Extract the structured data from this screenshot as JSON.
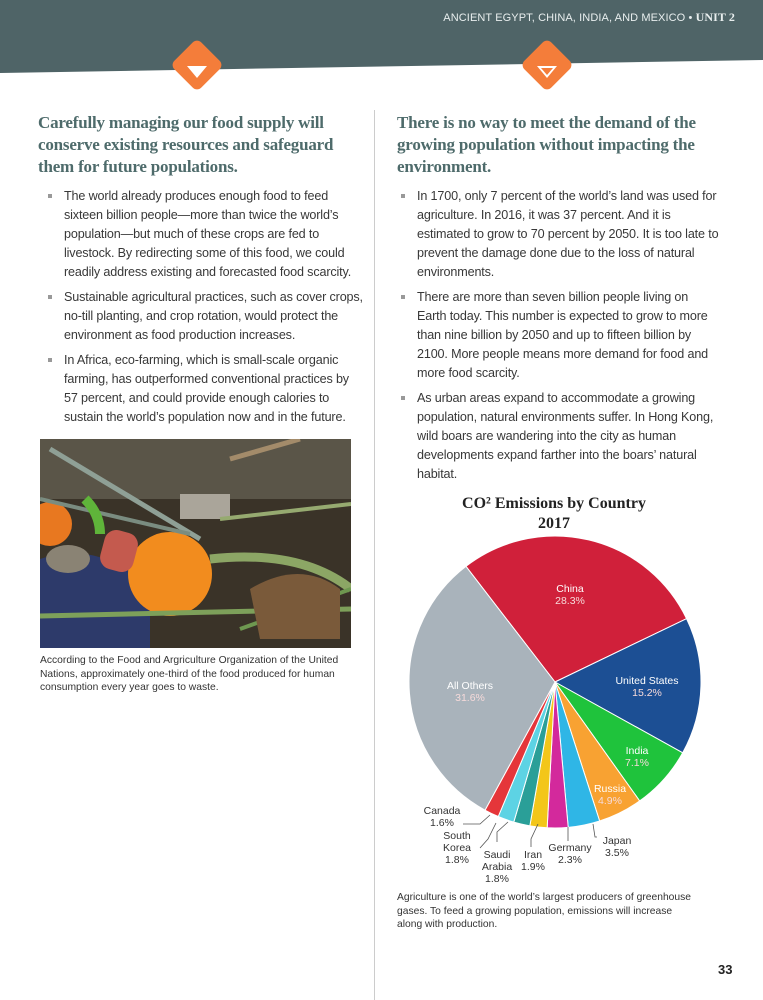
{
  "header": {
    "unit_title": "ANCIENT EGYPT, CHINA, INDIA, AND MEXICO •",
    "unit_label": "UNIT 2"
  },
  "left": {
    "heading": "Carefully managing our food supply will conserve existing resources and safeguard them for future populations.",
    "bullets": [
      "The world already produces enough food to feed sixteen billion people—more than twice the world’s population—but much of these crops are fed to livestock. By redirecting some of this food, we could readily address existing and forecasted food scarcity.",
      "Sustainable agricultural practices, such as cover crops, no-till planting, and crop rotation, would protect the environment as food production increases.",
      "In Africa, eco-farming, which is small-scale organic farming, has outperformed conventional practices by 57 percent, and could provide enough calories to sustain the world’s population now and in the future."
    ],
    "photo_caption": "According to the Food and Argriculture Organization of the United Nations, approximately one-third of the food produced for human consumption every year goes to waste."
  },
  "right": {
    "heading": "There is no way to meet the demand of the growing population without impacting the environment.",
    "bullets": [
      "In 1700, only 7 percent of the world’s land was used for agriculture. In 2016, it was 37 percent. And it is estimated to grow to 70 percent by 2050. It is too late to prevent the damage done due to the loss of natural environments.",
      "There are more than seven billion people living on Earth today. This number is expected to grow to more than nine billion by 2050 and up to fifteen billion by 2100. More people means more demand for food and more food scarcity.",
      "As urban areas expand to accommodate a growing population, natural environments suffer. In Hong Kong, wild boars are wandering into the city as human developments expand farther into the boars’ natural habitat."
    ],
    "chart_caption": "Agriculture is one of the world’s largest producers of greenhouse gases. To feed a growing population, emissions will increase along with production."
  },
  "chart_data": {
    "type": "pie",
    "title_line1": "CO² Emissions by Country",
    "title_line2": "2017",
    "slices": [
      {
        "label": "China",
        "value": 28.3,
        "display": "28.3%",
        "color": "#d0203a"
      },
      {
        "label": "United States",
        "value": 15.2,
        "display": "15.2%",
        "color": "#1c4f94"
      },
      {
        "label": "India",
        "value": 7.1,
        "display": "7.1%",
        "color": "#1fc33c"
      },
      {
        "label": "Russia",
        "value": 4.9,
        "display": "4.9%",
        "color": "#f8a232"
      },
      {
        "label": "Japan",
        "value": 3.5,
        "display": "3.5%",
        "color": "#2fb6e6"
      },
      {
        "label": "Germany",
        "value": 2.3,
        "display": "2.3%",
        "color": "#d3299c"
      },
      {
        "label": "Iran",
        "value": 1.9,
        "display": "1.9%",
        "color": "#f3c61a"
      },
      {
        "label": "Saudi Arabia",
        "value": 1.8,
        "display": "1.8%",
        "color": "#2a9f98",
        "label_a": "Saudi",
        "label_b": "Arabia"
      },
      {
        "label": "South Korea",
        "value": 1.8,
        "display": "1.8%",
        "color": "#5dd3e4",
        "label_a": "South",
        "label_b": "Korea"
      },
      {
        "label": "Canada",
        "value": 1.6,
        "display": "1.6%",
        "color": "#e5363a"
      },
      {
        "label": "All Others",
        "value": 31.6,
        "display": "31.6%",
        "color": "#a9b3bb"
      }
    ]
  },
  "page_number": "33"
}
